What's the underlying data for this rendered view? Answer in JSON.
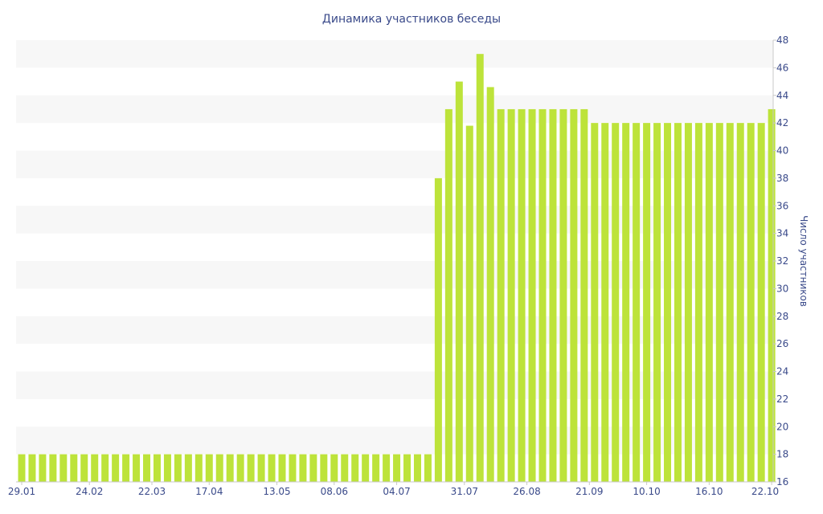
{
  "chart_data": {
    "type": "bar",
    "title": "Динамика участников беседы",
    "xlabel": "",
    "ylabel": "Число участников",
    "ylim": [
      16,
      48
    ],
    "yticks": [
      16,
      18,
      20,
      22,
      24,
      26,
      28,
      30,
      32,
      34,
      36,
      38,
      40,
      42,
      44,
      46,
      48
    ],
    "y_axis_side": "right",
    "grid": "alternating horizontal bands",
    "bar_color": "#bde33a",
    "band_color": "#f7f7f7",
    "text_color": "#3a4a8a",
    "xticks": [
      {
        "label": "29.01",
        "index": 0
      },
      {
        "label": "24.02",
        "index": 6.5
      },
      {
        "label": "22.03",
        "index": 12.5
      },
      {
        "label": "17.04",
        "index": 18
      },
      {
        "label": "13.05",
        "index": 24.5
      },
      {
        "label": "08.06",
        "index": 30
      },
      {
        "label": "04.07",
        "index": 36
      },
      {
        "label": "31.07",
        "index": 42.5
      },
      {
        "label": "26.08",
        "index": 48.5
      },
      {
        "label": "21.09",
        "index": 54.5
      },
      {
        "label": "10.10",
        "index": 60
      },
      {
        "label": "16.10",
        "index": 66
      },
      {
        "label": "22.10",
        "index": 72
      }
    ],
    "values": [
      18,
      18,
      18,
      18,
      18,
      18,
      18,
      18,
      18,
      18,
      18,
      18,
      18,
      18,
      18,
      18,
      18,
      18,
      18,
      18,
      18,
      18,
      18,
      18,
      18,
      18,
      18,
      18,
      18,
      18,
      18,
      18,
      18,
      18,
      18,
      18,
      18,
      18,
      18,
      18,
      38,
      43,
      45,
      41.8,
      47,
      44.6,
      43,
      43,
      43,
      43,
      43,
      43,
      43,
      43,
      43,
      42,
      42,
      42,
      42,
      42,
      42,
      42,
      42,
      42,
      42,
      42,
      42,
      42,
      42,
      42,
      42,
      42,
      43
    ]
  }
}
